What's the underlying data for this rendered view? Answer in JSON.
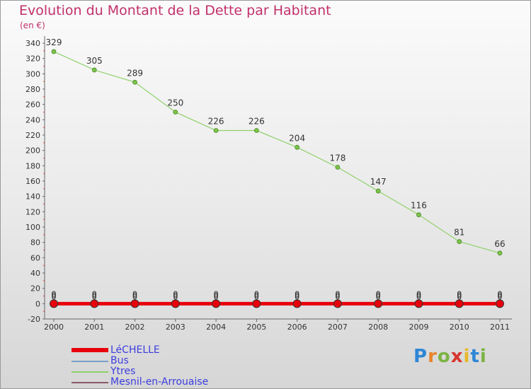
{
  "title": "Evolution du Montant de la Dette par Habitant",
  "subtitle": "(en €)",
  "chart_data": {
    "type": "line",
    "title": "Evolution du Montant de la Dette par Habitant",
    "ylabel": "(en €)",
    "xlabel": "",
    "x": [
      "2000",
      "2001",
      "2002",
      "2003",
      "2004",
      "2005",
      "2006",
      "2007",
      "2008",
      "2009",
      "2010",
      "2011"
    ],
    "ylim": [
      -20,
      340
    ],
    "yticks": [
      -20,
      0,
      20,
      40,
      60,
      80,
      100,
      120,
      140,
      160,
      180,
      200,
      220,
      240,
      260,
      280,
      300,
      320,
      340
    ],
    "series": [
      {
        "name": "LéCHELLE",
        "color": "#e8000b",
        "values": [
          0,
          0,
          0,
          0,
          0,
          0,
          0,
          0,
          0,
          0,
          0,
          0
        ]
      },
      {
        "name": "Bus",
        "color": "#7b9fc7",
        "values": [
          0,
          0,
          0,
          0,
          0,
          0,
          0,
          0,
          0,
          0,
          0,
          0
        ]
      },
      {
        "name": "Ytres",
        "color": "#8fd16a",
        "values": [
          329,
          305,
          289,
          250,
          226,
          226,
          204,
          178,
          147,
          116,
          81,
          66
        ]
      },
      {
        "name": "Mesnil-en-Arrouaise",
        "color": "#8a5a6a",
        "values": [
          0,
          0,
          0,
          0,
          0,
          0,
          0,
          0,
          0,
          0,
          0,
          0
        ]
      }
    ]
  },
  "legend": [
    {
      "label": "LéCHELLE",
      "color": "#e8000b"
    },
    {
      "label": "Bus",
      "color": "#7b9fc7"
    },
    {
      "label": "Ytres",
      "color": "#8fd16a"
    },
    {
      "label": "Mesnil-en-Arrouaise",
      "color": "#8a5a6a"
    }
  ],
  "logo": {
    "letters": [
      {
        "char": "P",
        "color": "#2f86d6"
      },
      {
        "char": "r",
        "color": "#e8842b"
      },
      {
        "char": "o",
        "color": "#7cb342"
      },
      {
        "char": "x",
        "color": "#d8342e"
      },
      {
        "char": "i",
        "color": "#e8b82b"
      },
      {
        "char": "t",
        "color": "#2f86d6"
      },
      {
        "char": "i",
        "color": "#7cb342"
      }
    ]
  }
}
